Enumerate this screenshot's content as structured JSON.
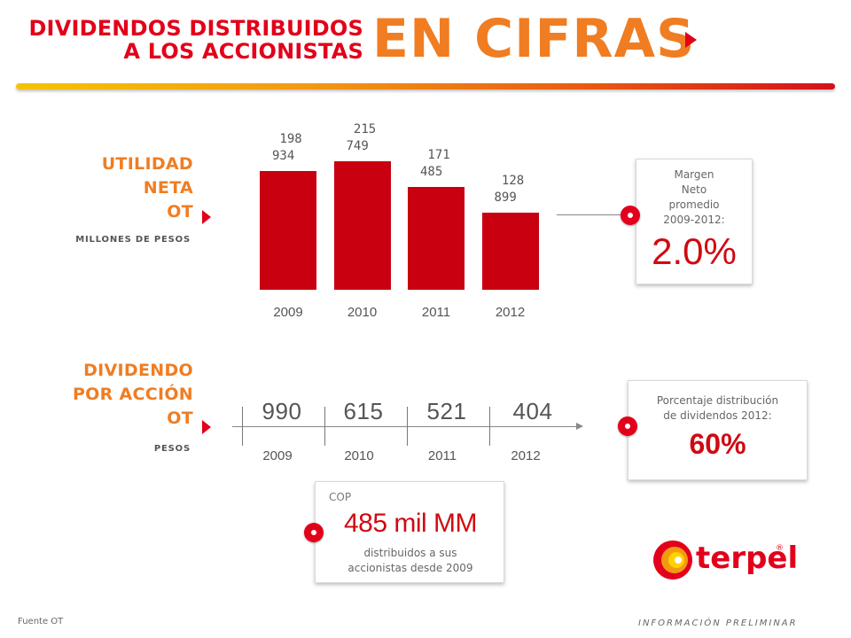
{
  "header": {
    "line1": "DIVIDENDOS DISTRIBUIDOS",
    "line2": "A LOS ACCIONISTAS",
    "big": "EN CIFRAS"
  },
  "utilidad": {
    "label_lines": [
      "UTILIDAD",
      "NETA",
      "OT"
    ],
    "unit": "MILLONES DE PESOS"
  },
  "chart_data": {
    "type": "bar",
    "categories": [
      "2009",
      "2010",
      "2011",
      "2012"
    ],
    "values": [
      198934,
      215749,
      171485,
      128899
    ],
    "value_labels": [
      "198\n934",
      "215\n749",
      "171\n485",
      "128\n899"
    ],
    "title": "",
    "xlabel": "",
    "ylabel": "",
    "ylim": [
      0,
      230000
    ],
    "bar_color": "#c8000f"
  },
  "margen": {
    "lines": [
      "Margen",
      "Neto",
      "promedio",
      "2009-2012:"
    ],
    "value": "2.0%"
  },
  "dividendo": {
    "label_lines": [
      "DIVIDENDO",
      "POR ACCIÓN",
      "OT"
    ],
    "unit": "PESOS",
    "values": [
      "990",
      "615",
      "521",
      "404"
    ],
    "years": [
      "2009",
      "2010",
      "2011",
      "2012"
    ]
  },
  "distribucion": {
    "lines": [
      "Porcentaje distribución",
      "de dividendos 2012:"
    ],
    "value": "60%"
  },
  "total": {
    "currency": "COP",
    "value": "485 mil MM",
    "lines": [
      "distribuidos a sus",
      "accionistas desde 2009"
    ]
  },
  "logo": {
    "text": "terpel",
    "mark": "®"
  },
  "footer": {
    "source": "Fuente OT",
    "note": "INFORMACIÓN PRELIMINAR"
  },
  "colors": {
    "red": "#e2001a",
    "orange": "#f07d22",
    "bar": "#c8000f"
  }
}
